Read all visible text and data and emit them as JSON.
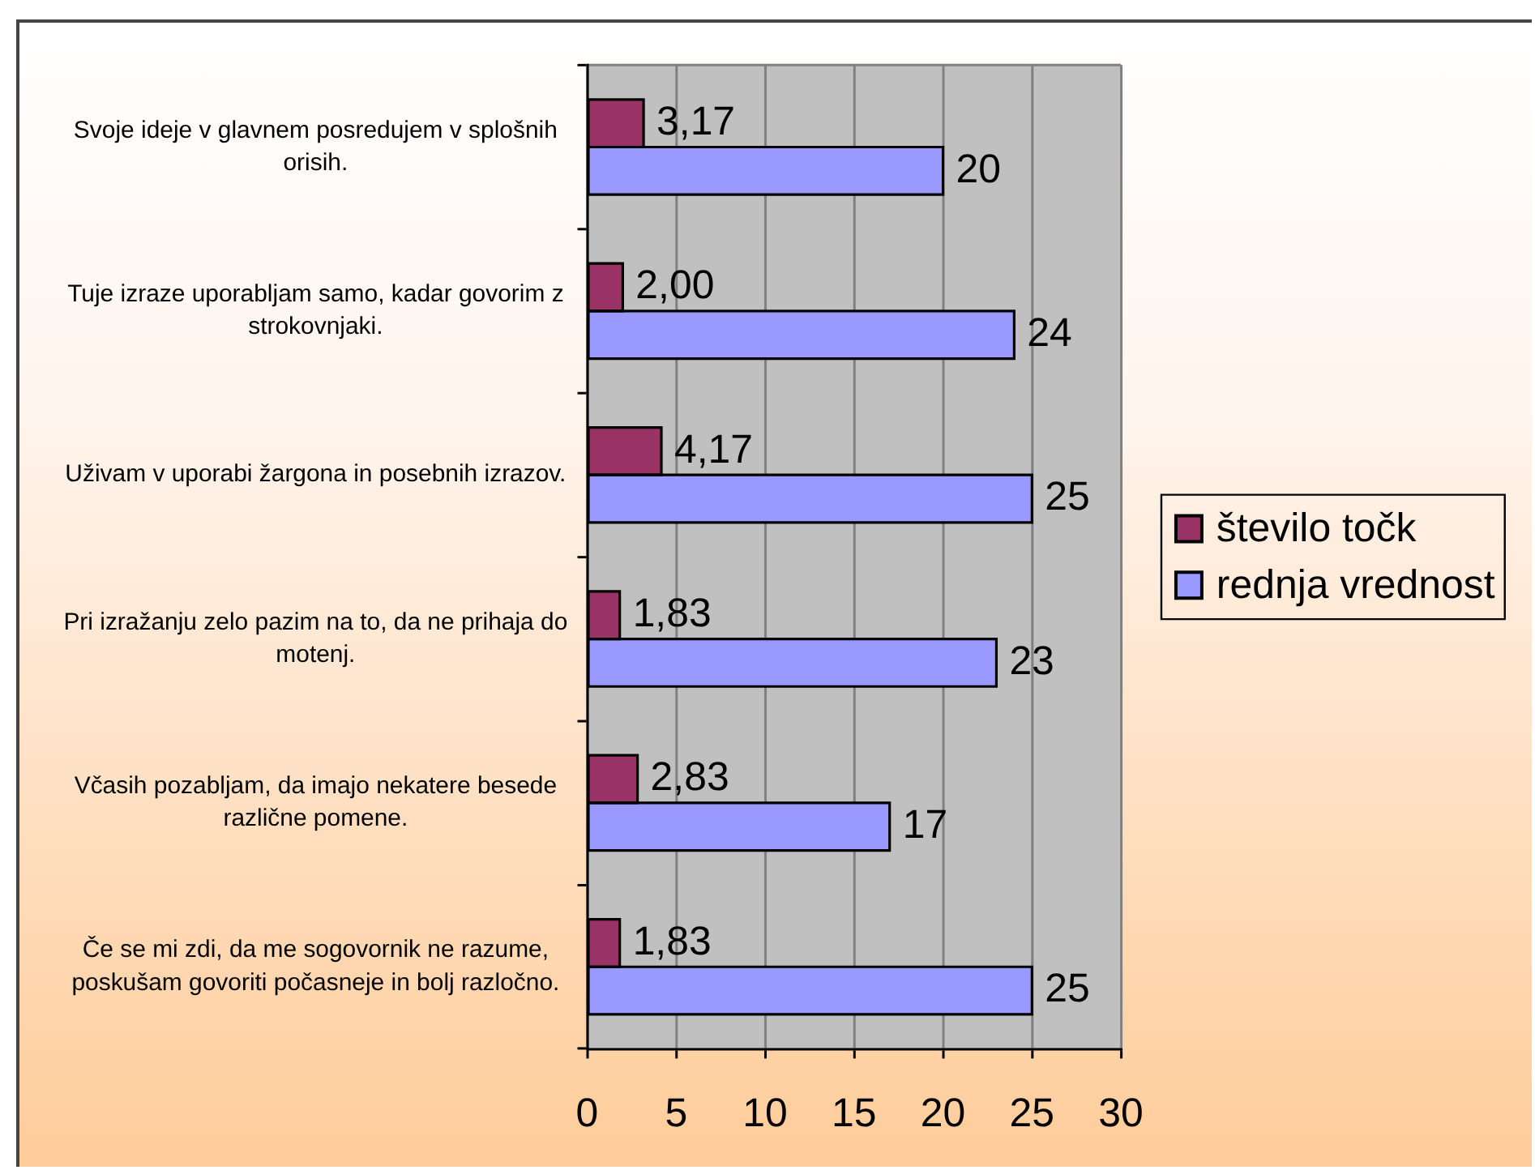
{
  "chart_data": {
    "type": "bar",
    "orientation": "horizontal",
    "categories": [
      "Svoje ideje v glavnem posredujem v splošnih orisih.",
      "Tuje izraze uporabljam samo, kadar govorim z strokovnjaki.",
      "Uživam v uporabi žargona in posebnih izrazov.",
      "Pri izražanju zelo pazim na to, da ne prihaja do motenj.",
      "Včasih pozabljam, da imajo nekatere besede različne pomene.",
      "Če se mi zdi, da me sogovornik ne razume, poskušam govoriti počasneje in bolj razločno."
    ],
    "series": [
      {
        "name": "število točk",
        "color": "#993366",
        "values": [
          3.17,
          2,
          4.17,
          1.83,
          2.83,
          1.83
        ],
        "value_labels": [
          "3,17",
          "2,00",
          "4,17",
          "1,83",
          "2,83",
          "1,83"
        ]
      },
      {
        "name": "rednja vrednost",
        "color": "#9999ff",
        "values": [
          20,
          24,
          25,
          23,
          17,
          25
        ],
        "value_labels": [
          "20",
          "24",
          "25",
          "23",
          "17",
          "25"
        ]
      }
    ],
    "xlim": [
      0,
      30
    ],
    "xticks": [
      0,
      5,
      10,
      15,
      20,
      25,
      30
    ],
    "grid": "x",
    "legend": "right"
  }
}
